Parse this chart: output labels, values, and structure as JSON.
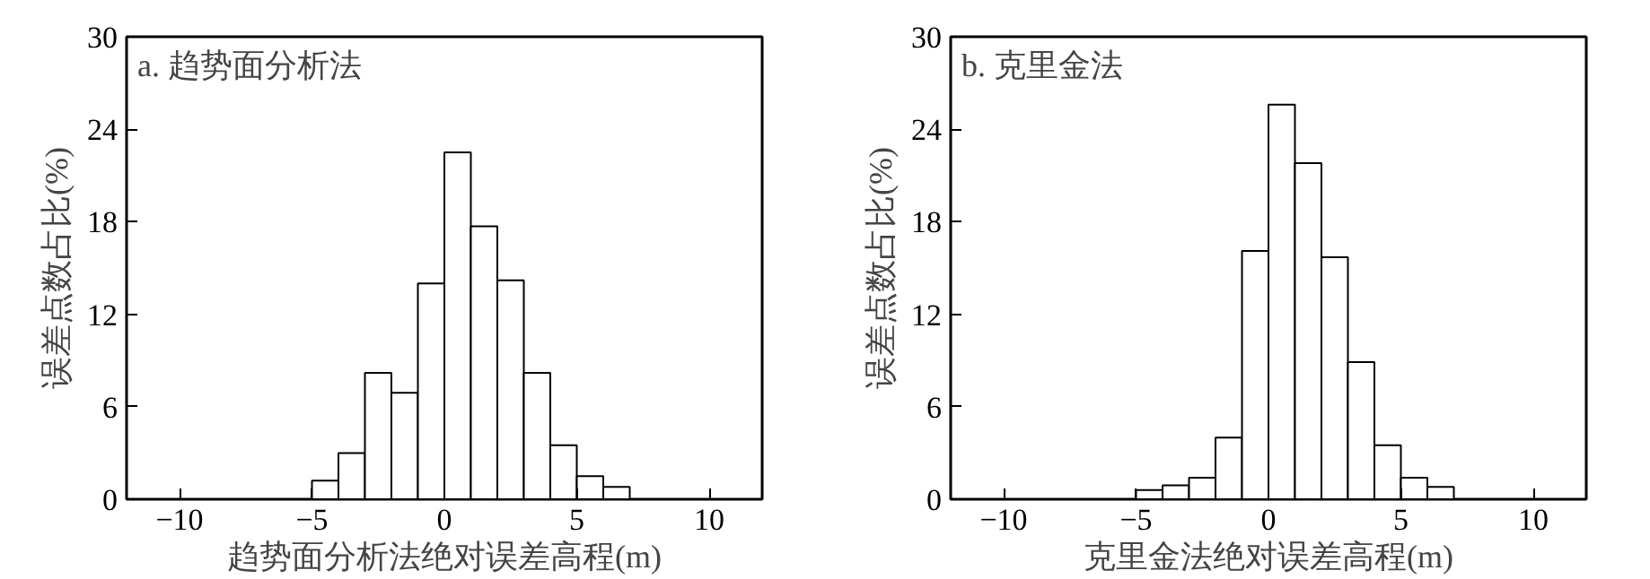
{
  "chart_data": [
    {
      "type": "histogram",
      "title": "a. 趋势面分析法",
      "xlabel": "趋势面分析法绝对误差高程(m)",
      "ylabel": "误差点数占比(%)",
      "bins": [
        -5,
        -4,
        -3,
        -2,
        -1,
        0,
        1,
        2,
        3,
        4,
        5,
        6,
        7
      ],
      "values": [
        1.2,
        3.0,
        8.2,
        6.9,
        14.0,
        22.5,
        17.7,
        14.2,
        8.2,
        3.5,
        1.5,
        0.8
      ],
      "color": "#ffffff",
      "xlim": [
        -12,
        12
      ],
      "xticks": [
        -10,
        -5,
        0,
        5,
        10
      ],
      "ylim": [
        0,
        30
      ],
      "yticks": [
        0,
        6,
        12,
        18,
        24,
        30
      ],
      "grid": false
    },
    {
      "type": "histogram",
      "title": "b. 克里金法",
      "xlabel": "克里金法绝对误差高程(m)",
      "ylabel": "误差点数占比(%)",
      "bins": [
        -5,
        -4,
        -3,
        -2,
        -1,
        0,
        1,
        2,
        3,
        4,
        5,
        6,
        7
      ],
      "values": [
        0.6,
        0.9,
        1.4,
        4.0,
        16.1,
        25.6,
        21.8,
        15.7,
        8.9,
        3.5,
        1.4,
        0.8
      ],
      "color": "#ffffff",
      "xlim": [
        -12,
        12
      ],
      "xticks": [
        -10,
        -5,
        0,
        5,
        10
      ],
      "ylim": [
        0,
        30
      ],
      "yticks": [
        0,
        6,
        12,
        18,
        24,
        30
      ],
      "grid": false
    }
  ]
}
